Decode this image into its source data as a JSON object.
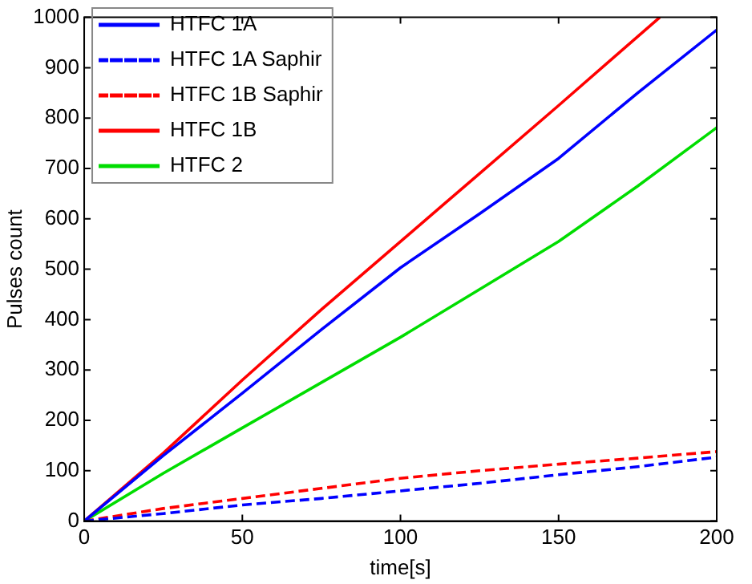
{
  "chart_data": {
    "type": "line",
    "xlabel": "time[s]",
    "ylabel": "Pulses count",
    "xlim": [
      0,
      200
    ],
    "xticks": [
      0,
      50,
      100,
      150,
      200
    ],
    "ylim": [
      0,
      1000
    ],
    "yticks": [
      0,
      100,
      200,
      300,
      400,
      500,
      600,
      700,
      800,
      900,
      1000
    ],
    "grid": false,
    "legend": "top left",
    "marker": "none",
    "series": [
      {
        "name": "HTFC 1A",
        "color": "#0000ff",
        "line_style": "solid",
        "x": [
          0,
          25,
          50,
          75,
          100,
          125,
          150,
          175,
          200
        ],
        "values": [
          0,
          130,
          254,
          380,
          503,
          610,
          720,
          850,
          975
        ]
      },
      {
        "name": "HTFC 1A Saphir",
        "color": "#0000ff",
        "line_style": "dashed",
        "x": [
          0,
          25,
          50,
          75,
          100,
          125,
          150,
          175,
          200
        ],
        "values": [
          0,
          15,
          32,
          45,
          60,
          75,
          92,
          108,
          127
        ]
      },
      {
        "name": "HTFC 1B Saphir",
        "color": "#ff0000",
        "line_style": "dashed",
        "x": [
          0,
          25,
          50,
          75,
          100,
          125,
          150,
          175,
          200
        ],
        "values": [
          0,
          25,
          45,
          65,
          85,
          100,
          113,
          125,
          138
        ]
      },
      {
        "name": "HTFC 1B",
        "color": "#ff0000",
        "line_style": "solid",
        "x": [
          0,
          25,
          50,
          75,
          100,
          125,
          150,
          182
        ],
        "values": [
          0,
          135,
          280,
          420,
          555,
          690,
          825,
          1000
        ]
      },
      {
        "name": "HTFC 2",
        "color": "#00dd00",
        "line_style": "solid",
        "x": [
          0,
          25,
          50,
          75,
          100,
          125,
          150,
          175,
          200
        ],
        "values": [
          0,
          95,
          185,
          275,
          365,
          460,
          555,
          665,
          781
        ]
      }
    ]
  }
}
